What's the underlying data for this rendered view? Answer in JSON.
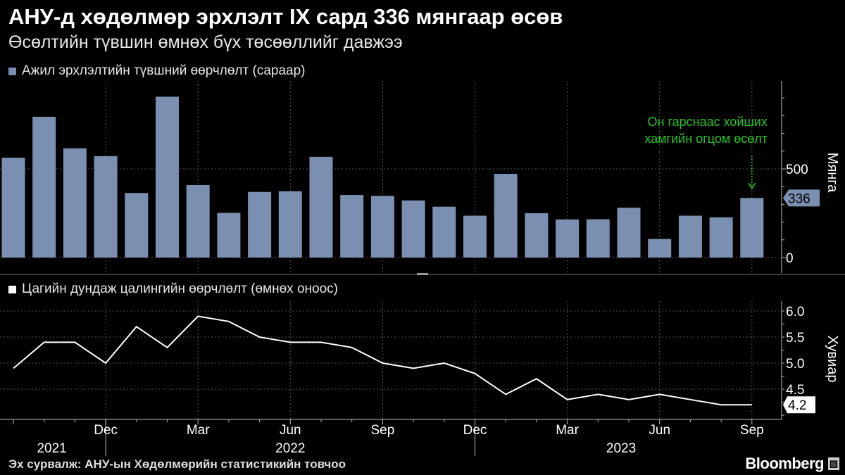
{
  "title": "АНУ-д хөдөлмөр эрхлэлт IX сард 336 мянгаар өсөв",
  "subtitle": "Өсөлтийн түвшин өмнөх бүх төсөөллийг давжээ",
  "source": "Эх сурвалж: АНУ-ын Хөдөлмөрийн статистикийн товчоо",
  "brand": "Bloomberg",
  "colors": {
    "bar": "#7b8fb1",
    "wage_line": "#ffffff",
    "annotation": "#26c326",
    "grid": "#555555",
    "background": "#000000"
  },
  "chart_data": [
    {
      "type": "bar",
      "legend": "Ажил эрхлэлтийн түвшний өөрчлөлт (сараар)",
      "ylabel": "Мянга",
      "ylim": [
        -80,
        900
      ],
      "yticks": [
        0,
        500
      ],
      "x": [
        "2021-09",
        "2021-10",
        "2021-11",
        "2021-12",
        "2022-01",
        "2022-02",
        "2022-03",
        "2022-04",
        "2022-05",
        "2022-06",
        "2022-07",
        "2022-08",
        "2022-09",
        "2022-10",
        "2022-11",
        "2022-12",
        "2023-01",
        "2023-02",
        "2023-03",
        "2023-04",
        "2023-05",
        "2023-06",
        "2023-07",
        "2023-08",
        "2023-09"
      ],
      "values": [
        563,
        794,
        616,
        572,
        364,
        907,
        409,
        252,
        370,
        374,
        568,
        353,
        348,
        322,
        287,
        236,
        472,
        250,
        215,
        216,
        281,
        105,
        236,
        227,
        336
      ],
      "last_value_label": "336",
      "annotation": "Он гарснаас хойших\nхамгийн огцом өсөлт",
      "grid": true
    },
    {
      "type": "line",
      "legend": "Цагийн дундаж цалингийн өөрчлөлт (өмнөх оноос)",
      "ylabel": "Хувиар",
      "ylim": [
        4.0,
        6.2
      ],
      "yticks": [
        "6.0",
        "5.5",
        "5.0",
        "4.5"
      ],
      "x": [
        "2021-09",
        "2021-10",
        "2021-11",
        "2021-12",
        "2022-01",
        "2022-02",
        "2022-03",
        "2022-04",
        "2022-05",
        "2022-06",
        "2022-07",
        "2022-08",
        "2022-09",
        "2022-10",
        "2022-11",
        "2022-12",
        "2023-01",
        "2023-02",
        "2023-03",
        "2023-04",
        "2023-05",
        "2023-06",
        "2023-07",
        "2023-08",
        "2023-09"
      ],
      "values": [
        4.9,
        5.4,
        5.4,
        5.0,
        5.7,
        5.3,
        5.9,
        5.8,
        5.5,
        5.4,
        5.4,
        5.3,
        5.0,
        4.9,
        5.0,
        4.8,
        4.4,
        4.7,
        4.3,
        4.4,
        4.3,
        4.4,
        4.3,
        4.2,
        4.2
      ],
      "last_value_label": "4.2",
      "grid": true
    }
  ],
  "x_axis": {
    "month_labels": [
      {
        "index": 3,
        "label": "Dec"
      },
      {
        "index": 6,
        "label": "Mar"
      },
      {
        "index": 9,
        "label": "Jun"
      },
      {
        "index": 12,
        "label": "Sep"
      },
      {
        "index": 15,
        "label": "Dec"
      },
      {
        "index": 18,
        "label": "Mar"
      },
      {
        "index": 21,
        "label": "Jun"
      },
      {
        "index": 24,
        "label": "Sep"
      }
    ],
    "year_labels": [
      {
        "label": "2021",
        "from": -0.5,
        "to": 3
      },
      {
        "label": "2022",
        "from": 3,
        "to": 15
      },
      {
        "label": "2023",
        "from": 15,
        "to": 24.5
      }
    ]
  }
}
